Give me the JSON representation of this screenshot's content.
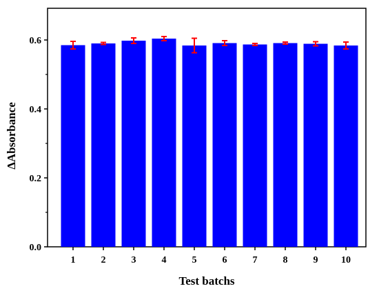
{
  "chart_data": {
    "type": "bar",
    "xlabel": "Test batchs",
    "ylabel": "ΔAbsorbance",
    "categories": [
      "1",
      "2",
      "3",
      "4",
      "5",
      "6",
      "7",
      "8",
      "9",
      "10"
    ],
    "values": [
      0.585,
      0.59,
      0.598,
      0.604,
      0.584,
      0.591,
      0.587,
      0.591,
      0.589,
      0.584
    ],
    "errors": [
      0.011,
      0.003,
      0.008,
      0.006,
      0.021,
      0.007,
      0.003,
      0.003,
      0.006,
      0.01
    ],
    "ylim": [
      0.0,
      0.69
    ],
    "yticks": [
      "0.0",
      "0.2",
      "0.4",
      "0.6"
    ],
    "ytick_values": [
      0.0,
      0.2,
      0.4,
      0.6
    ],
    "grid": false,
    "bar_color": "#0000ff",
    "error_color": "#ff0000"
  }
}
